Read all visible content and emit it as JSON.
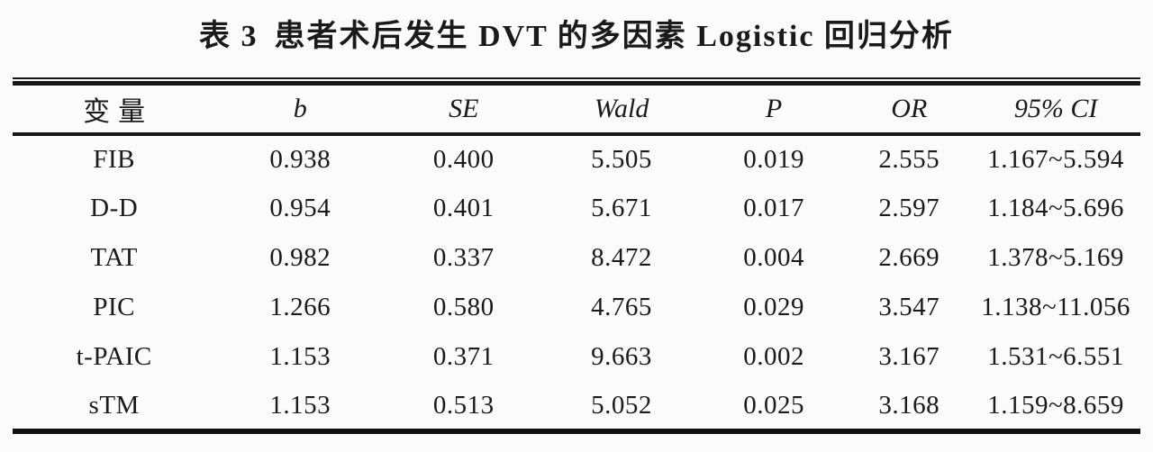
{
  "title": {
    "label": "表 3",
    "text": "患者术后发生 DVT 的多因素 Logistic 回归分析"
  },
  "chart_data": {
    "type": "table",
    "title": "表 3 患者术后发生 DVT 的多因素 Logistic 回归分析",
    "columns": [
      "变量",
      "b",
      "SE",
      "Wald",
      "P",
      "OR",
      "95% CI"
    ],
    "rows": [
      {
        "variable": "FIB",
        "b": "0.938",
        "se": "0.400",
        "wald": "5.505",
        "p": "0.019",
        "or": "2.555",
        "ci": "1.167~5.594"
      },
      {
        "variable": "D-D",
        "b": "0.954",
        "se": "0.401",
        "wald": "5.671",
        "p": "0.017",
        "or": "2.597",
        "ci": "1.184~5.696"
      },
      {
        "variable": "TAT",
        "b": "0.982",
        "se": "0.337",
        "wald": "8.472",
        "p": "0.004",
        "or": "2.669",
        "ci": "1.378~5.169"
      },
      {
        "variable": "PIC",
        "b": "1.266",
        "se": "0.580",
        "wald": "4.765",
        "p": "0.029",
        "or": "3.547",
        "ci": "1.138~11.056"
      },
      {
        "variable": "t-PAIC",
        "b": "1.153",
        "se": "0.371",
        "wald": "9.663",
        "p": "0.002",
        "or": "3.167",
        "ci": "1.531~6.551"
      },
      {
        "variable": "sTM",
        "b": "1.153",
        "se": "0.513",
        "wald": "5.052",
        "p": "0.025",
        "or": "3.168",
        "ci": "1.159~8.659"
      }
    ],
    "ink_color": "#1a1a1a",
    "background_color": "#fbfbfb"
  }
}
